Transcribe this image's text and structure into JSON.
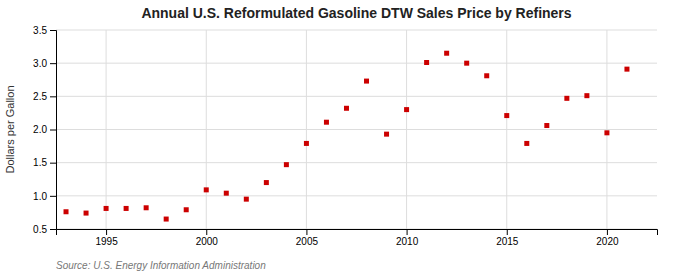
{
  "chart_data": {
    "type": "scatter",
    "title": "Annual U.S. Reformulated Gasoline DTW Sales Price by Refiners",
    "ylabel": "Dollars per Gallon",
    "source": "Source: U.S. Energy Information Administration",
    "x": [
      1993,
      1994,
      1995,
      1996,
      1997,
      1998,
      1999,
      2000,
      2001,
      2002,
      2003,
      2004,
      2005,
      2006,
      2007,
      2008,
      2009,
      2010,
      2011,
      2012,
      2013,
      2014,
      2015,
      2016,
      2017,
      2018,
      2019,
      2020,
      2021
    ],
    "values": [
      0.76,
      0.74,
      0.81,
      0.81,
      0.82,
      0.65,
      0.79,
      1.09,
      1.04,
      0.95,
      1.2,
      1.47,
      1.79,
      2.11,
      2.32,
      2.73,
      1.93,
      2.3,
      3.01,
      3.15,
      3.0,
      2.81,
      2.21,
      1.79,
      2.06,
      2.47,
      2.51,
      1.95,
      2.91
    ],
    "color": "#cc0000",
    "marker": "square",
    "xlim": [
      1992.5,
      2022.5
    ],
    "ylim": [
      0.5,
      3.5
    ],
    "xticks": [
      1995,
      2000,
      2005,
      2010,
      2015,
      2020
    ],
    "yticks": [
      0.5,
      {
        "value": 1.0,
        "label": "1.0"
      },
      1.5,
      {
        "value": 2.0,
        "label": "2.0"
      },
      2.5,
      {
        "value": 3.0,
        "label": "3.0"
      },
      3.5
    ],
    "grid": true
  }
}
